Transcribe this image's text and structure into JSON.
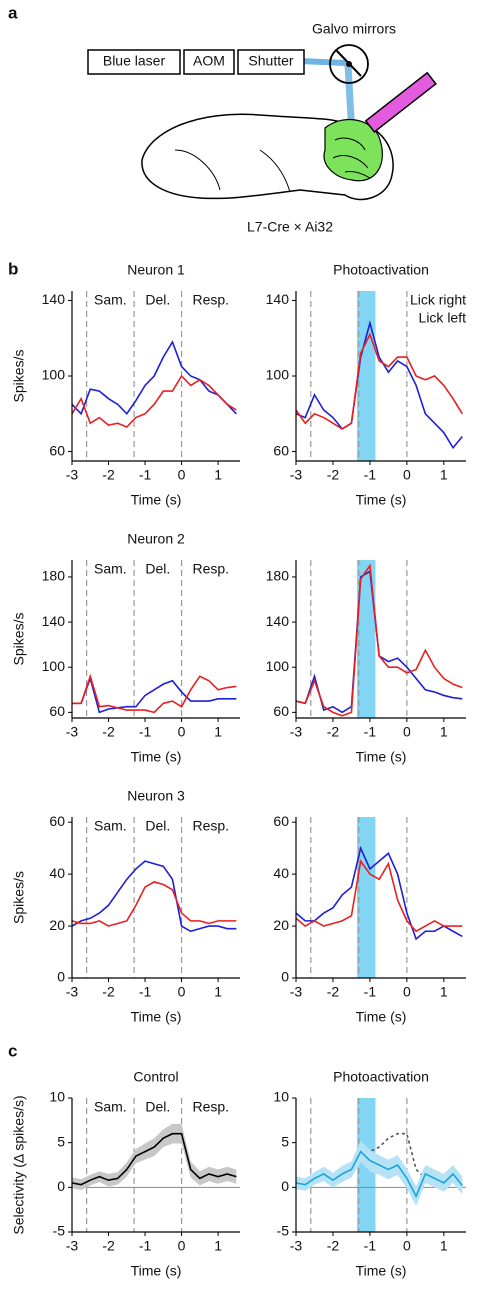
{
  "panel_labels": [
    "a",
    "b",
    "c"
  ],
  "schematic": {
    "laser": "Blue laser",
    "aom": "AOM",
    "shutter": "Shutter",
    "galvo": "Galvo mirrors",
    "mouse": "L7-Cre × Ai32"
  },
  "chart_data": [
    {
      "type": "line",
      "title": "Neuron 1",
      "ylabel": "Spikes/s",
      "xlabel": "Time (s)",
      "x": [
        -3,
        -2.75,
        -2.5,
        -2.25,
        -2,
        -1.75,
        -1.5,
        -1.25,
        -1,
        -0.75,
        -0.5,
        -0.25,
        0,
        0.25,
        0.5,
        0.75,
        1,
        1.25,
        1.5
      ],
      "xlim": [
        -3,
        1.6
      ],
      "xticks": [
        -3,
        -2,
        -1,
        0,
        1
      ],
      "ylim": [
        55,
        145
      ],
      "yticks": [
        60,
        100,
        140
      ],
      "epoch_lines": [
        -2.6,
        -1.3,
        0
      ],
      "epoch_labels": [
        "Sam.",
        "Del.",
        "Resp."
      ],
      "series": [
        {
          "color": "#1f1fd6",
          "values": [
            85,
            80,
            93,
            92,
            88,
            85,
            80,
            87,
            95,
            100,
            110,
            118,
            105,
            100,
            98,
            92,
            90,
            85,
            80
          ]
        },
        {
          "color": "#e82020",
          "values": [
            80,
            88,
            75,
            78,
            74,
            75,
            73,
            78,
            80,
            85,
            92,
            92,
            100,
            95,
            98,
            95,
            90,
            85,
            82
          ]
        }
      ]
    },
    {
      "type": "line",
      "title": "Photoactivation",
      "title_color": "#29b6e6",
      "xlabel": "Time (s)",
      "x": [
        -3,
        -2.75,
        -2.5,
        -2.25,
        -2,
        -1.75,
        -1.5,
        -1.25,
        -1,
        -0.75,
        -0.5,
        -0.25,
        0,
        0.25,
        0.5,
        0.75,
        1,
        1.25,
        1.5
      ],
      "xlim": [
        -3,
        1.6
      ],
      "xticks": [
        -3,
        -2,
        -1,
        0,
        1
      ],
      "ylim": [
        55,
        145
      ],
      "yticks": [
        60,
        100,
        140
      ],
      "epoch_lines": [
        -2.6,
        -1.3,
        0
      ],
      "span": [
        -1.35,
        -0.85
      ],
      "span_color": "#82d6f4",
      "legend": "upper right",
      "series": [
        {
          "name": "Lick right",
          "color": "#1f1fd6",
          "values": [
            80,
            78,
            90,
            82,
            78,
            72,
            75,
            110,
            128,
            110,
            102,
            108,
            105,
            95,
            80,
            75,
            70,
            62,
            68
          ]
        },
        {
          "name": "Lick left",
          "color": "#e82020",
          "values": [
            82,
            75,
            80,
            78,
            75,
            72,
            75,
            112,
            122,
            108,
            105,
            110,
            110,
            100,
            98,
            100,
            95,
            88,
            80
          ]
        }
      ]
    },
    {
      "type": "line",
      "title": "Neuron 2",
      "ylabel": "Spikes/s",
      "xlabel": "Time (s)",
      "x": [
        -3,
        -2.75,
        -2.5,
        -2.25,
        -2,
        -1.75,
        -1.5,
        -1.25,
        -1,
        -0.75,
        -0.5,
        -0.25,
        0,
        0.25,
        0.5,
        0.75,
        1,
        1.25,
        1.5
      ],
      "xlim": [
        -3,
        1.6
      ],
      "xticks": [
        -3,
        -2,
        -1,
        0,
        1
      ],
      "ylim": [
        55,
        195
      ],
      "yticks": [
        60,
        100,
        140,
        180
      ],
      "epoch_lines": [
        -2.6,
        -1.3,
        0
      ],
      "epoch_labels": [
        "Sam.",
        "Del.",
        "Resp."
      ],
      "series": [
        {
          "color": "#1f1fd6",
          "values": [
            68,
            68,
            90,
            60,
            63,
            64,
            65,
            65,
            75,
            80,
            85,
            88,
            78,
            70,
            70,
            70,
            72,
            72,
            72
          ]
        },
        {
          "color": "#e82020",
          "values": [
            68,
            68,
            92,
            65,
            66,
            64,
            62,
            62,
            62,
            60,
            68,
            70,
            65,
            80,
            92,
            88,
            80,
            82,
            83
          ]
        }
      ]
    },
    {
      "type": "line",
      "xlabel": "Time (s)",
      "x": [
        -3,
        -2.75,
        -2.5,
        -2.25,
        -2,
        -1.75,
        -1.5,
        -1.25,
        -1,
        -0.75,
        -0.5,
        -0.25,
        0,
        0.25,
        0.5,
        0.75,
        1,
        1.25,
        1.5
      ],
      "xlim": [
        -3,
        1.6
      ],
      "xticks": [
        -3,
        -2,
        -1,
        0,
        1
      ],
      "ylim": [
        55,
        195
      ],
      "yticks": [
        60,
        100,
        140,
        180
      ],
      "epoch_lines": [
        -2.6,
        -1.3,
        0
      ],
      "span": [
        -1.35,
        -0.85
      ],
      "span_color": "#82d6f4",
      "series": [
        {
          "color": "#1f1fd6",
          "values": [
            70,
            68,
            92,
            62,
            65,
            60,
            65,
            180,
            185,
            110,
            105,
            108,
            100,
            90,
            80,
            78,
            75,
            73,
            72
          ]
        },
        {
          "color": "#e82020",
          "values": [
            70,
            68,
            88,
            65,
            60,
            57,
            60,
            178,
            190,
            110,
            100,
            100,
            95,
            98,
            115,
            100,
            90,
            85,
            82
          ]
        }
      ]
    },
    {
      "type": "line",
      "title": "Neuron 3",
      "ylabel": "Spikes/s",
      "xlabel": "Time (s)",
      "x": [
        -3,
        -2.75,
        -2.5,
        -2.25,
        -2,
        -1.75,
        -1.5,
        -1.25,
        -1,
        -0.75,
        -0.5,
        -0.25,
        0,
        0.25,
        0.5,
        0.75,
        1,
        1.25,
        1.5
      ],
      "xlim": [
        -3,
        1.6
      ],
      "xticks": [
        -3,
        -2,
        -1,
        0,
        1
      ],
      "ylim": [
        0,
        62
      ],
      "yticks": [
        0,
        20,
        40,
        60
      ],
      "epoch_lines": [
        -2.6,
        -1.3,
        0
      ],
      "epoch_labels": [
        "Sam.",
        "Del.",
        "Resp."
      ],
      "series": [
        {
          "color": "#1f1fd6",
          "values": [
            20,
            22,
            23,
            25,
            28,
            33,
            38,
            42,
            45,
            44,
            43,
            38,
            20,
            18,
            19,
            20,
            20,
            19,
            19
          ]
        },
        {
          "color": "#e82020",
          "values": [
            22,
            21,
            21,
            22,
            20,
            21,
            22,
            28,
            35,
            37,
            36,
            34,
            25,
            22,
            22,
            21,
            22,
            22,
            22
          ]
        }
      ]
    },
    {
      "type": "line",
      "xlabel": "Time (s)",
      "x": [
        -3,
        -2.75,
        -2.5,
        -2.25,
        -2,
        -1.75,
        -1.5,
        -1.25,
        -1,
        -0.75,
        -0.5,
        -0.25,
        0,
        0.25,
        0.5,
        0.75,
        1,
        1.25,
        1.5
      ],
      "xlim": [
        -3,
        1.6
      ],
      "xticks": [
        -3,
        -2,
        -1,
        0,
        1
      ],
      "ylim": [
        0,
        62
      ],
      "yticks": [
        0,
        20,
        40,
        60
      ],
      "epoch_lines": [
        -2.6,
        -1.3,
        0
      ],
      "span": [
        -1.35,
        -0.85
      ],
      "span_color": "#82d6f4",
      "series": [
        {
          "color": "#1f1fd6",
          "values": [
            25,
            22,
            22,
            25,
            27,
            32,
            35,
            50,
            42,
            45,
            48,
            40,
            25,
            15,
            18,
            18,
            20,
            18,
            16
          ]
        },
        {
          "color": "#e82020",
          "values": [
            23,
            20,
            22,
            20,
            21,
            22,
            24,
            45,
            40,
            38,
            44,
            30,
            22,
            18,
            20,
            22,
            20,
            20,
            20
          ]
        }
      ]
    },
    {
      "type": "line",
      "title": "Control",
      "ylabel": "Selectivity (Δ spikes/s)",
      "xlabel": "Time (s)",
      "x": [
        -3,
        -2.75,
        -2.5,
        -2.25,
        -2,
        -1.75,
        -1.5,
        -1.25,
        -1,
        -0.75,
        -0.5,
        -0.25,
        0,
        0.25,
        0.5,
        0.75,
        1,
        1.25,
        1.5
      ],
      "xlim": [
        -3,
        1.6
      ],
      "xticks": [
        -3,
        -2,
        -1,
        0,
        1
      ],
      "ylim": [
        -5,
        10
      ],
      "yticks": [
        -5,
        0,
        5,
        10
      ],
      "hline": 0,
      "epoch_lines": [
        -2.6,
        -1.3,
        0
      ],
      "epoch_labels": [
        "Sam.",
        "Del.",
        "Resp."
      ],
      "series": [
        {
          "color": "#000000",
          "band_color": "#c8c8c8",
          "values": [
            0.5,
            0.3,
            0.8,
            1.2,
            0.8,
            1,
            2,
            3.5,
            4,
            4.5,
            5.5,
            6,
            6,
            2,
            1,
            1.5,
            1.2,
            1.5,
            1.2
          ],
          "errors": [
            0.6,
            0.6,
            0.6,
            0.6,
            0.7,
            0.7,
            0.8,
            0.8,
            0.9,
            1,
            1,
            1.1,
            1.1,
            0.9,
            0.8,
            0.8,
            0.8,
            0.8,
            0.8
          ]
        }
      ]
    },
    {
      "type": "line",
      "title": "Photoactivation",
      "title_color": "#29b6e6",
      "xlabel": "Time (s)",
      "x": [
        -3,
        -2.75,
        -2.5,
        -2.25,
        -2,
        -1.75,
        -1.5,
        -1.25,
        -1,
        -0.75,
        -0.5,
        -0.25,
        0,
        0.25,
        0.5,
        0.75,
        1,
        1.25,
        1.5
      ],
      "xlim": [
        -3,
        1.6
      ],
      "xticks": [
        -3,
        -2,
        -1,
        0,
        1
      ],
      "ylim": [
        -5,
        10
      ],
      "yticks": [
        -5,
        0,
        5,
        10
      ],
      "hline": 0,
      "epoch_lines": [
        -2.6,
        -1.3,
        0
      ],
      "span": [
        -1.35,
        -0.85
      ],
      "span_color": "#82d6f4",
      "series": [
        {
          "color": "#555555",
          "dash": true,
          "values": [
            0.5,
            0.3,
            0.8,
            1.2,
            0.8,
            1,
            2,
            3.5,
            4,
            4.5,
            5.5,
            6,
            6,
            2,
            1,
            1.5,
            1.2,
            1.5,
            1.2
          ]
        },
        {
          "color": "#1aa3dc",
          "band_color": "#b5e2f5",
          "values": [
            0.5,
            0.3,
            1,
            1.5,
            0.8,
            1.5,
            2,
            4,
            3,
            2.5,
            2,
            2.5,
            1,
            -1,
            1.5,
            1,
            0.5,
            1.5,
            0.2
          ],
          "errors": [
            0.7,
            0.7,
            0.7,
            0.8,
            0.8,
            0.9,
            0.9,
            1.2,
            1.2,
            1.1,
            1.1,
            1.1,
            1.1,
            1.1,
            1,
            1,
            1,
            1,
            1
          ]
        }
      ]
    }
  ]
}
